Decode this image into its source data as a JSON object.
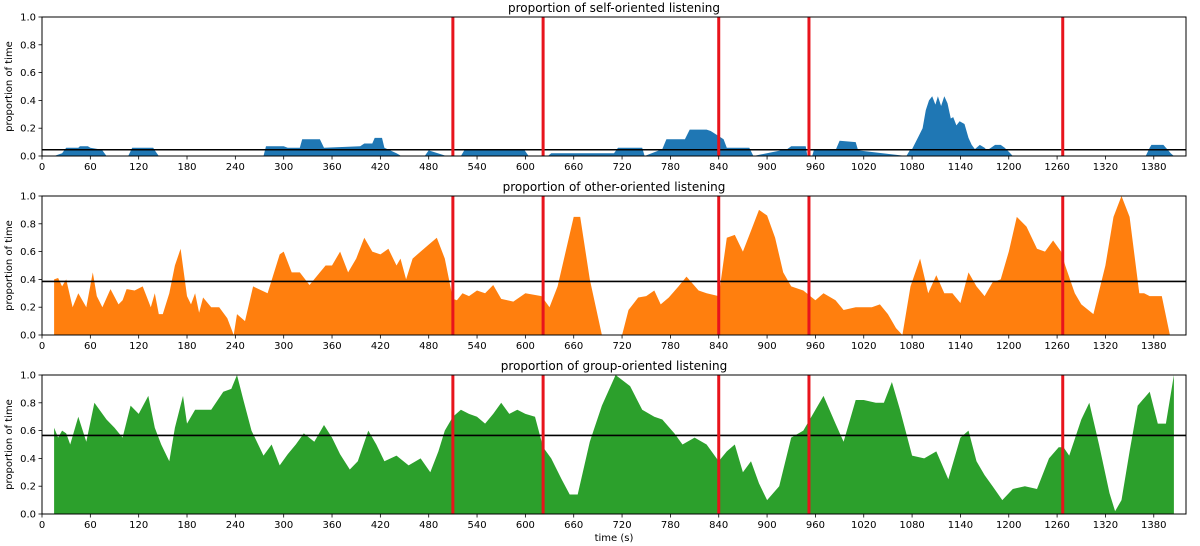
{
  "chart_data": [
    {
      "type": "area",
      "title": "proportion of self-oriented listening",
      "xlabel": "",
      "ylabel": "proportion of time",
      "xlim": [
        0,
        1420
      ],
      "ylim": [
        0,
        1.0
      ],
      "xticks": [
        0,
        60,
        120,
        180,
        240,
        300,
        360,
        420,
        480,
        540,
        600,
        660,
        720,
        780,
        840,
        900,
        960,
        1020,
        1080,
        1140,
        1200,
        1260,
        1320,
        1380
      ],
      "yticks": [
        0.0,
        0.2,
        0.4,
        0.6,
        0.8,
        1.0
      ],
      "color": "#1f77b4",
      "mean_line": 0.045,
      "vlines": [
        510,
        622,
        840,
        952,
        1267
      ],
      "series": [
        {
          "x": [
            15,
            25,
            30,
            45,
            47,
            57,
            60,
            70,
            75,
            80,
            107,
            112,
            138,
            140,
            145,
            275,
            278,
            300,
            305,
            320,
            323,
            345,
            350,
            395,
            400,
            410,
            413,
            422,
            425,
            440,
            446,
            475,
            480,
            502,
            520,
            525,
            598,
            604,
            628,
            632,
            710,
            715,
            745,
            748,
            770,
            775,
            798,
            804,
            825,
            830,
            846,
            850,
            878,
            883,
            925,
            930,
            948,
            950,
            956,
            958,
            985,
            990,
            1010,
            1013,
            1073,
            1078,
            1080,
            1088,
            1093,
            1097,
            1101,
            1105,
            1109,
            1112,
            1116,
            1120,
            1124,
            1128,
            1131,
            1135,
            1139,
            1145,
            1150,
            1154,
            1158,
            1164,
            1170,
            1173,
            1178,
            1183,
            1190,
            1195,
            1200,
            1205,
            1370,
            1375,
            1377,
            1392,
            1395,
            1398,
            1401,
            1405
          ],
          "y": [
            0,
            0.02,
            0.06,
            0.06,
            0.07,
            0.07,
            0.06,
            0.05,
            0.04,
            0,
            0,
            0.06,
            0.06,
            0.04,
            0,
            0,
            0.07,
            0.07,
            0.06,
            0.06,
            0.12,
            0.12,
            0.06,
            0.07,
            0.09,
            0.09,
            0.13,
            0.13,
            0.06,
            0.02,
            0,
            0,
            0.04,
            0,
            0,
            0.05,
            0.05,
            0,
            0,
            0.02,
            0.02,
            0.06,
            0.06,
            0,
            0.05,
            0.12,
            0.12,
            0.19,
            0.19,
            0.18,
            0.12,
            0.06,
            0.06,
            0,
            0.05,
            0.07,
            0.07,
            0,
            0,
            0.04,
            0.04,
            0.11,
            0.1,
            0.04,
            0,
            0.05,
            0.05,
            0.14,
            0.2,
            0.33,
            0.4,
            0.43,
            0.37,
            0.43,
            0.36,
            0.43,
            0.38,
            0.27,
            0.28,
            0.22,
            0.25,
            0.23,
            0.13,
            0.08,
            0.05,
            0.08,
            0.06,
            0.04,
            0.06,
            0.08,
            0.08,
            0.06,
            0.03,
            0,
            0,
            0.06,
            0.08,
            0.08,
            0.06,
            0.04,
            0.02,
            0
          ]
        }
      ]
    },
    {
      "type": "area",
      "title": "proportion of other-oriented listening",
      "xlabel": "",
      "ylabel": "proportion of time",
      "xlim": [
        0,
        1420
      ],
      "ylim": [
        0,
        1.0
      ],
      "xticks": [
        0,
        60,
        120,
        180,
        240,
        300,
        360,
        420,
        480,
        540,
        600,
        660,
        720,
        780,
        840,
        900,
        960,
        1020,
        1080,
        1140,
        1200,
        1260,
        1320,
        1380
      ],
      "yticks": [
        0.0,
        0.2,
        0.4,
        0.6,
        0.8,
        1.0
      ],
      "color": "#ff7f0e",
      "mean_line": 0.385,
      "vlines": [
        510,
        622,
        840,
        952,
        1267
      ],
      "series": [
        {
          "x": [
            15,
            20,
            25,
            30,
            38,
            45,
            55,
            63,
            68,
            75,
            85,
            95,
            100,
            105,
            115,
            125,
            135,
            140,
            145,
            150,
            158,
            165,
            172,
            180,
            185,
            190,
            195,
            200,
            210,
            220,
            230,
            238,
            242,
            252,
            262,
            280,
            295,
            300,
            310,
            320,
            332,
            345,
            352,
            360,
            370,
            380,
            390,
            400,
            410,
            420,
            430,
            440,
            445,
            452,
            460,
            470,
            480,
            490,
            500,
            510,
            515,
            522,
            530,
            540,
            550,
            560,
            570,
            585,
            600,
            620,
            630,
            640,
            660,
            668,
            680,
            695,
            700,
            710,
            720,
            728,
            740,
            750,
            760,
            768,
            778,
            790,
            800,
            815,
            825,
            840,
            850,
            860,
            870,
            880,
            890,
            900,
            910,
            920,
            930,
            945,
            960,
            970,
            985,
            995,
            1010,
            1020,
            1030,
            1040,
            1050,
            1060,
            1068,
            1078,
            1090,
            1100,
            1110,
            1120,
            1130,
            1140,
            1150,
            1160,
            1170,
            1180,
            1190,
            1200,
            1210,
            1222,
            1235,
            1245,
            1255,
            1265,
            1270,
            1282,
            1290,
            1305,
            1320,
            1330,
            1340,
            1350,
            1362,
            1368,
            1375,
            1390,
            1400
          ],
          "y": [
            0.4,
            0.41,
            0.35,
            0.4,
            0.2,
            0.3,
            0.2,
            0.45,
            0.28,
            0.2,
            0.33,
            0.22,
            0.25,
            0.33,
            0.32,
            0.35,
            0.2,
            0.3,
            0.15,
            0.15,
            0.3,
            0.5,
            0.62,
            0.28,
            0.22,
            0.3,
            0.16,
            0.27,
            0.2,
            0.2,
            0.12,
            0.0,
            0.15,
            0.1,
            0.35,
            0.3,
            0.58,
            0.6,
            0.45,
            0.45,
            0.36,
            0.45,
            0.5,
            0.5,
            0.6,
            0.45,
            0.55,
            0.7,
            0.6,
            0.58,
            0.62,
            0.5,
            0.55,
            0.4,
            0.55,
            0.6,
            0.65,
            0.7,
            0.55,
            0.26,
            0.25,
            0.3,
            0.28,
            0.32,
            0.3,
            0.36,
            0.26,
            0.24,
            0.3,
            0.28,
            0.2,
            0.35,
            0.85,
            0.85,
            0.4,
            0.0,
            0.0,
            0.0,
            0.0,
            0.18,
            0.27,
            0.28,
            0.32,
            0.22,
            0.27,
            0.35,
            0.42,
            0.32,
            0.3,
            0.28,
            0.7,
            0.72,
            0.6,
            0.75,
            0.9,
            0.86,
            0.7,
            0.45,
            0.35,
            0.32,
            0.25,
            0.3,
            0.25,
            0.18,
            0.2,
            0.2,
            0.2,
            0.22,
            0.15,
            0.05,
            0.0,
            0.35,
            0.55,
            0.3,
            0.43,
            0.3,
            0.3,
            0.23,
            0.45,
            0.35,
            0.28,
            0.38,
            0.4,
            0.6,
            0.85,
            0.78,
            0.62,
            0.6,
            0.68,
            0.6,
            0.5,
            0.3,
            0.22,
            0.15,
            0.5,
            0.85,
            1.0,
            0.85,
            0.3,
            0.3,
            0.28,
            0.28,
            0.0
          ]
        }
      ]
    },
    {
      "type": "area",
      "title": "proportion of group-oriented listening",
      "xlabel": "time (s)",
      "ylabel": "proportion of time",
      "xlim": [
        0,
        1420
      ],
      "ylim": [
        0,
        1.0
      ],
      "xticks": [
        0,
        60,
        120,
        180,
        240,
        300,
        360,
        420,
        480,
        540,
        600,
        660,
        720,
        780,
        840,
        900,
        960,
        1020,
        1080,
        1140,
        1200,
        1260,
        1320,
        1380
      ],
      "yticks": [
        0.0,
        0.2,
        0.4,
        0.6,
        0.8,
        1.0
      ],
      "color": "#2ca02c",
      "mean_line": 0.565,
      "vlines": [
        510,
        622,
        840,
        952,
        1267
      ],
      "series": [
        {
          "x": [
            15,
            20,
            25,
            30,
            35,
            45,
            55,
            65,
            80,
            90,
            100,
            110,
            120,
            132,
            140,
            148,
            158,
            165,
            175,
            180,
            190,
            200,
            210,
            225,
            235,
            242,
            250,
            260,
            275,
            285,
            295,
            305,
            315,
            325,
            338,
            350,
            360,
            370,
            382,
            392,
            405,
            415,
            425,
            440,
            455,
            470,
            482,
            492,
            500,
            510,
            520,
            530,
            540,
            550,
            560,
            570,
            580,
            590,
            600,
            612,
            622,
            632,
            645,
            655,
            665,
            680,
            695,
            712,
            730,
            745,
            760,
            770,
            785,
            795,
            810,
            825,
            840,
            850,
            860,
            870,
            880,
            890,
            900,
            915,
            930,
            945,
            955,
            970,
            985,
            995,
            1010,
            1020,
            1035,
            1045,
            1055,
            1065,
            1080,
            1095,
            1110,
            1125,
            1140,
            1150,
            1160,
            1170,
            1180,
            1192,
            1205,
            1220,
            1235,
            1250,
            1262,
            1268,
            1275,
            1290,
            1300,
            1312,
            1325,
            1332,
            1340,
            1350,
            1360,
            1375,
            1385,
            1395,
            1405
          ],
          "y": [
            0.62,
            0.55,
            0.6,
            0.58,
            0.5,
            0.7,
            0.52,
            0.8,
            0.68,
            0.62,
            0.55,
            0.78,
            0.72,
            0.85,
            0.62,
            0.5,
            0.38,
            0.62,
            0.85,
            0.65,
            0.75,
            0.75,
            0.75,
            0.88,
            0.9,
            1.0,
            0.82,
            0.6,
            0.42,
            0.5,
            0.35,
            0.43,
            0.5,
            0.58,
            0.52,
            0.64,
            0.55,
            0.43,
            0.32,
            0.38,
            0.6,
            0.5,
            0.38,
            0.42,
            0.35,
            0.4,
            0.3,
            0.45,
            0.6,
            0.7,
            0.75,
            0.72,
            0.7,
            0.65,
            0.72,
            0.8,
            0.72,
            0.75,
            0.72,
            0.7,
            0.48,
            0.4,
            0.25,
            0.14,
            0.14,
            0.52,
            0.78,
            1.0,
            0.92,
            0.75,
            0.7,
            0.68,
            0.58,
            0.5,
            0.55,
            0.5,
            0.38,
            0.45,
            0.5,
            0.3,
            0.38,
            0.22,
            0.1,
            0.2,
            0.55,
            0.6,
            0.7,
            0.85,
            0.65,
            0.52,
            0.82,
            0.82,
            0.8,
            0.8,
            0.95,
            0.75,
            0.42,
            0.4,
            0.45,
            0.25,
            0.55,
            0.6,
            0.38,
            0.28,
            0.2,
            0.1,
            0.18,
            0.2,
            0.18,
            0.4,
            0.48,
            0.48,
            0.42,
            0.68,
            0.8,
            0.5,
            0.15,
            0.02,
            0.1,
            0.45,
            0.78,
            0.88,
            0.65,
            0.65,
            1.0
          ]
        }
      ]
    }
  ]
}
